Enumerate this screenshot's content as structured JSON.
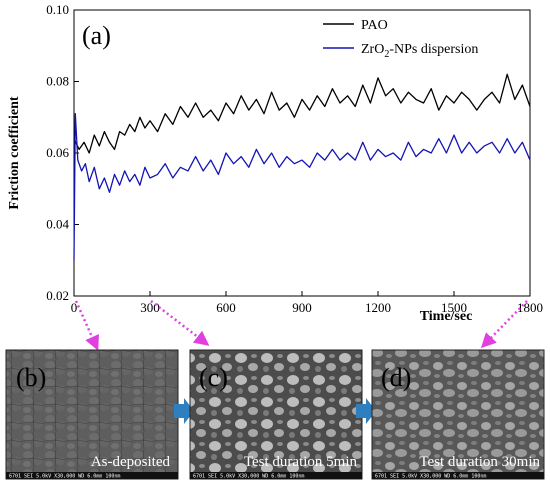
{
  "chart_data": {
    "type": "line",
    "title": "",
    "panel_label": "(a)",
    "xlabel": "Time/sec",
    "ylabel": "Friction coefficient",
    "xlim": [
      0,
      1800
    ],
    "ylim": [
      0.02,
      0.1
    ],
    "x_ticks": [
      "0",
      "300",
      "600",
      "900",
      "1200",
      "1500",
      "1800"
    ],
    "y_ticks": [
      "0.02",
      "0.04",
      "0.06",
      "0.08",
      "0.10"
    ],
    "legend_position": "top-right",
    "series": [
      {
        "name": "PAO",
        "color": "#000000",
        "x": [
          0,
          20,
          40,
          60,
          80,
          100,
          120,
          140,
          160,
          180,
          200,
          220,
          240,
          260,
          280,
          300,
          330,
          360,
          390,
          420,
          450,
          480,
          510,
          540,
          570,
          600,
          630,
          660,
          690,
          720,
          750,
          780,
          810,
          840,
          870,
          900,
          930,
          960,
          990,
          1020,
          1050,
          1080,
          1110,
          1140,
          1170,
          1200,
          1230,
          1260,
          1290,
          1320,
          1350,
          1380,
          1410,
          1440,
          1470,
          1500,
          1530,
          1560,
          1590,
          1620,
          1650,
          1680,
          1710,
          1740,
          1770,
          1800
        ],
        "y": [
          0.064,
          0.061,
          0.063,
          0.06,
          0.065,
          0.062,
          0.066,
          0.063,
          0.061,
          0.066,
          0.065,
          0.068,
          0.066,
          0.07,
          0.067,
          0.069,
          0.066,
          0.071,
          0.068,
          0.073,
          0.07,
          0.074,
          0.07,
          0.072,
          0.069,
          0.074,
          0.071,
          0.076,
          0.072,
          0.075,
          0.071,
          0.077,
          0.072,
          0.074,
          0.07,
          0.075,
          0.072,
          0.076,
          0.073,
          0.078,
          0.074,
          0.076,
          0.073,
          0.079,
          0.074,
          0.081,
          0.076,
          0.078,
          0.074,
          0.077,
          0.075,
          0.074,
          0.078,
          0.072,
          0.076,
          0.074,
          0.077,
          0.075,
          0.072,
          0.075,
          0.077,
          0.074,
          0.082,
          0.075,
          0.079,
          0.073
        ]
      },
      {
        "name": "ZrO2-NPs dispersion",
        "color": "#1414b4",
        "x": [
          0,
          5,
          15,
          30,
          45,
          60,
          80,
          100,
          120,
          140,
          160,
          180,
          200,
          220,
          240,
          260,
          280,
          300,
          330,
          360,
          390,
          420,
          450,
          480,
          510,
          540,
          570,
          600,
          630,
          660,
          690,
          720,
          750,
          780,
          810,
          840,
          870,
          900,
          930,
          960,
          990,
          1020,
          1050,
          1080,
          1110,
          1140,
          1170,
          1200,
          1230,
          1260,
          1290,
          1320,
          1350,
          1380,
          1410,
          1440,
          1470,
          1500,
          1530,
          1560,
          1590,
          1620,
          1650,
          1680,
          1710,
          1740,
          1770,
          1800
        ],
        "y": [
          0.03,
          0.071,
          0.058,
          0.055,
          0.057,
          0.052,
          0.056,
          0.05,
          0.053,
          0.049,
          0.054,
          0.051,
          0.055,
          0.052,
          0.054,
          0.051,
          0.056,
          0.053,
          0.054,
          0.057,
          0.053,
          0.056,
          0.055,
          0.059,
          0.055,
          0.058,
          0.054,
          0.06,
          0.057,
          0.059,
          0.056,
          0.061,
          0.057,
          0.06,
          0.056,
          0.059,
          0.057,
          0.058,
          0.056,
          0.06,
          0.058,
          0.061,
          0.058,
          0.06,
          0.058,
          0.063,
          0.058,
          0.061,
          0.059,
          0.06,
          0.058,
          0.063,
          0.059,
          0.061,
          0.06,
          0.064,
          0.06,
          0.065,
          0.06,
          0.063,
          0.06,
          0.062,
          0.063,
          0.06,
          0.064,
          0.06,
          0.063,
          0.058
        ]
      }
    ]
  },
  "legend": {
    "pao": "PAO",
    "zro2_prefix": "ZrO",
    "zro2_sub": "2",
    "zro2_suffix": "-NPs dispersion"
  },
  "micrographs": [
    {
      "label": "(b)",
      "caption": "As-deposited",
      "info": "6701    SEI    5.0kV    X30,000    WD 6.0mm    100nm"
    },
    {
      "label": "(c)",
      "caption": "Test duration 5min",
      "info": "6701    SEI    5.0kV    X30,000    WD 6.0mm    100nm"
    },
    {
      "label": "(d)",
      "caption": "Test duration 30min",
      "info": "6701    SEI    5.0kV    X30,000    WD 6.0mm    100nm"
    }
  ],
  "colors": {
    "pao": "#000000",
    "zro2": "#1414b4",
    "arrow_magenta": "#e040e0",
    "arrow_blue": "#2d7fc0",
    "sem_background": "#5a5a5a"
  }
}
